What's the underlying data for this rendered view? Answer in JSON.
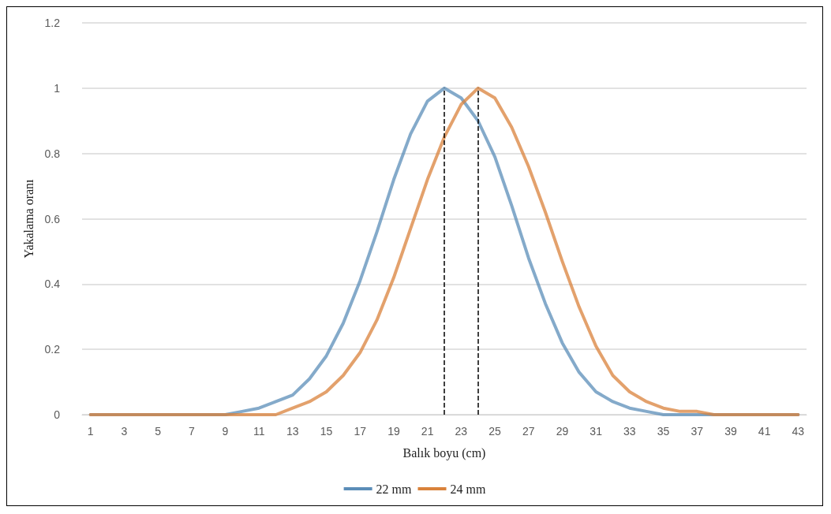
{
  "chart_data": {
    "type": "line",
    "xlabel": "Balık boyu (cm)",
    "ylabel": "Yakalama oranı",
    "x": [
      1,
      2,
      3,
      4,
      5,
      6,
      7,
      8,
      9,
      10,
      11,
      12,
      13,
      14,
      15,
      16,
      17,
      18,
      19,
      20,
      21,
      22,
      23,
      24,
      25,
      26,
      27,
      28,
      29,
      30,
      31,
      32,
      33,
      34,
      35,
      36,
      37,
      38,
      39,
      40,
      41,
      42,
      43
    ],
    "xlim": [
      0.5,
      43.5
    ],
    "xticks": [
      1,
      3,
      5,
      7,
      9,
      11,
      13,
      15,
      17,
      19,
      21,
      23,
      25,
      27,
      29,
      31,
      33,
      35,
      37,
      39,
      41,
      43
    ],
    "ylim": [
      0,
      1.2
    ],
    "yticks": [
      0,
      0.2,
      0.4,
      0.6,
      0.8,
      1,
      1.2
    ],
    "series": [
      {
        "name": "22 mm",
        "color": "#5b8db8",
        "values": [
          0,
          0,
          0,
          0,
          0,
          0,
          0,
          0,
          0,
          0.01,
          0.02,
          0.04,
          0.06,
          0.11,
          0.18,
          0.28,
          0.41,
          0.56,
          0.72,
          0.86,
          0.96,
          1,
          0.97,
          0.9,
          0.79,
          0.64,
          0.48,
          0.34,
          0.22,
          0.13,
          0.07,
          0.04,
          0.02,
          0.01,
          0,
          0,
          0,
          0,
          0,
          0,
          0,
          0,
          0
        ]
      },
      {
        "name": "24 mm",
        "color": "#d9823b",
        "values": [
          0,
          0,
          0,
          0,
          0,
          0,
          0,
          0,
          0,
          0,
          0,
          0,
          0.02,
          0.04,
          0.07,
          0.12,
          0.19,
          0.29,
          0.42,
          0.57,
          0.72,
          0.85,
          0.95,
          1,
          0.97,
          0.88,
          0.76,
          0.62,
          0.47,
          0.33,
          0.21,
          0.12,
          0.07,
          0.04,
          0.02,
          0.01,
          0.01,
          0,
          0,
          0,
          0,
          0,
          0
        ]
      }
    ],
    "ref_lines": [
      {
        "axis": "x",
        "value": 22,
        "color": "#000000",
        "line_style": "dashed"
      },
      {
        "axis": "x",
        "value": 24,
        "color": "#000000",
        "line_style": "dashed"
      }
    ],
    "grid": "y",
    "legend": "bottom",
    "marker": "none",
    "line_style": "solid"
  }
}
